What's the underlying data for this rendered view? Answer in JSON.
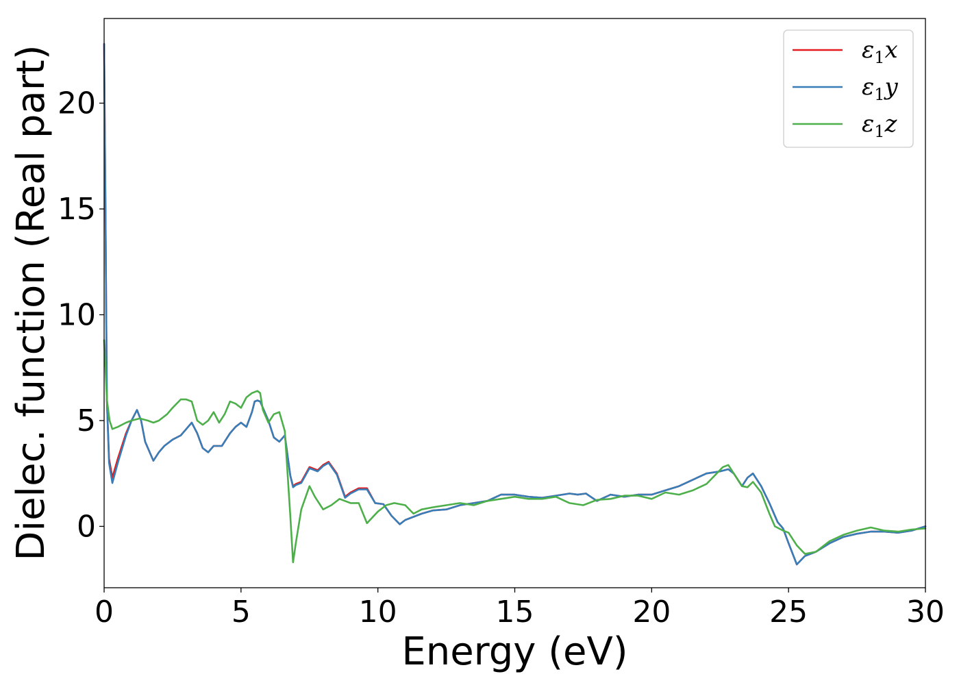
{
  "chart_data": {
    "type": "line",
    "title": "",
    "xlabel": "Energy (eV)",
    "ylabel": "Dielec. function (Real part)",
    "xlim": [
      0,
      30
    ],
    "ylim": [
      -2.9,
      24
    ],
    "xticks": [
      0,
      5,
      10,
      15,
      20,
      25,
      30
    ],
    "yticks": [
      0,
      5,
      10,
      15,
      20
    ],
    "grid": false,
    "legend_position": "top-right",
    "series": [
      {
        "name": "ε₁x",
        "legend_base": "ε",
        "legend_sub": "1",
        "legend_var": "x",
        "color": "#e41a1c",
        "x": [
          0,
          0.05,
          0.1,
          0.18,
          0.3,
          0.5,
          0.8,
          1.0,
          1.2,
          1.35,
          1.5,
          1.8,
          2.0,
          2.2,
          2.5,
          2.8,
          3.0,
          3.2,
          3.4,
          3.6,
          3.8,
          4.0,
          4.3,
          4.6,
          4.8,
          5.0,
          5.2,
          5.4,
          5.5,
          5.6,
          5.7,
          6.0,
          6.2,
          6.4,
          6.6,
          6.8,
          6.9,
          7.0,
          7.2,
          7.5,
          7.8,
          8.0,
          8.2,
          8.5,
          8.8,
          9.0,
          9.3,
          9.6,
          9.9,
          10.2,
          10.5,
          10.8,
          11.0,
          11.3,
          11.6,
          12.0,
          12.5,
          13.0,
          13.5,
          14.0,
          14.5,
          15.0,
          15.5,
          16.0,
          16.5,
          17.0,
          17.3,
          17.6,
          18.0,
          18.5,
          19.0,
          19.5,
          20.0,
          20.5,
          21.0,
          21.5,
          22.0,
          22.5,
          22.8,
          23.0,
          23.3,
          23.5,
          23.7,
          24.0,
          24.3,
          24.6,
          24.8,
          25.0,
          25.3,
          25.6,
          26.0,
          26.5,
          27.0,
          27.5,
          28.0,
          28.5,
          29.0,
          29.5,
          30.0
        ],
        "y": [
          22.8,
          15.0,
          6.0,
          3.2,
          2.3,
          3.2,
          4.4,
          5.0,
          5.5,
          5.0,
          4.0,
          3.1,
          3.5,
          3.8,
          4.1,
          4.3,
          4.6,
          4.9,
          4.4,
          3.7,
          3.5,
          3.8,
          3.8,
          4.4,
          4.7,
          4.9,
          4.7,
          5.4,
          5.9,
          5.95,
          5.9,
          5.0,
          4.2,
          4.0,
          4.3,
          2.4,
          1.9,
          2.0,
          2.1,
          2.8,
          2.65,
          2.9,
          3.05,
          2.5,
          1.4,
          1.6,
          1.8,
          1.8,
          1.1,
          1.05,
          0.5,
          0.1,
          0.3,
          0.45,
          0.6,
          0.75,
          0.8,
          1.0,
          1.1,
          1.2,
          1.5,
          1.5,
          1.4,
          1.35,
          1.45,
          1.55,
          1.5,
          1.55,
          1.2,
          1.5,
          1.4,
          1.5,
          1.5,
          1.7,
          1.9,
          2.2,
          2.5,
          2.6,
          2.7,
          2.5,
          1.9,
          2.3,
          2.5,
          1.9,
          1.1,
          0.2,
          -0.1,
          -0.8,
          -1.8,
          -1.4,
          -1.2,
          -0.8,
          -0.5,
          -0.35,
          -0.25,
          -0.25,
          -0.3,
          -0.2,
          0.0
        ]
      },
      {
        "name": "ε₁y",
        "legend_base": "ε",
        "legend_sub": "1",
        "legend_var": "y",
        "color": "#377eb8",
        "x": [
          0,
          0.05,
          0.1,
          0.18,
          0.3,
          0.5,
          0.8,
          1.0,
          1.2,
          1.35,
          1.5,
          1.8,
          2.0,
          2.2,
          2.5,
          2.8,
          3.0,
          3.2,
          3.4,
          3.6,
          3.8,
          4.0,
          4.3,
          4.6,
          4.8,
          5.0,
          5.2,
          5.4,
          5.5,
          5.6,
          5.7,
          6.0,
          6.2,
          6.4,
          6.6,
          6.8,
          6.9,
          7.0,
          7.2,
          7.5,
          7.8,
          8.0,
          8.2,
          8.5,
          8.8,
          9.0,
          9.3,
          9.6,
          9.9,
          10.2,
          10.5,
          10.8,
          11.0,
          11.3,
          11.6,
          12.0,
          12.5,
          13.0,
          13.5,
          14.0,
          14.5,
          15.0,
          15.5,
          16.0,
          16.5,
          17.0,
          17.3,
          17.6,
          18.0,
          18.5,
          19.0,
          19.5,
          20.0,
          20.5,
          21.0,
          21.5,
          22.0,
          22.5,
          22.8,
          23.0,
          23.3,
          23.5,
          23.7,
          24.0,
          24.3,
          24.6,
          24.8,
          25.0,
          25.3,
          25.6,
          26.0,
          26.5,
          27.0,
          27.5,
          28.0,
          28.5,
          29.0,
          29.5,
          30.0
        ],
        "y": [
          22.8,
          15.0,
          6.0,
          3.0,
          2.05,
          3.0,
          4.3,
          5.0,
          5.5,
          5.0,
          4.0,
          3.1,
          3.5,
          3.8,
          4.1,
          4.3,
          4.6,
          4.9,
          4.4,
          3.7,
          3.5,
          3.8,
          3.8,
          4.4,
          4.7,
          4.9,
          4.7,
          5.4,
          5.9,
          5.95,
          5.9,
          5.0,
          4.2,
          4.0,
          4.3,
          2.4,
          1.85,
          1.95,
          2.05,
          2.75,
          2.6,
          2.85,
          3.0,
          2.45,
          1.35,
          1.55,
          1.75,
          1.75,
          1.1,
          1.05,
          0.5,
          0.1,
          0.3,
          0.45,
          0.6,
          0.75,
          0.8,
          1.0,
          1.1,
          1.2,
          1.5,
          1.5,
          1.4,
          1.35,
          1.45,
          1.55,
          1.5,
          1.55,
          1.2,
          1.5,
          1.4,
          1.5,
          1.5,
          1.7,
          1.9,
          2.2,
          2.5,
          2.6,
          2.7,
          2.5,
          1.9,
          2.3,
          2.5,
          1.9,
          1.1,
          0.2,
          -0.1,
          -0.8,
          -1.8,
          -1.4,
          -1.2,
          -0.8,
          -0.5,
          -0.35,
          -0.25,
          -0.25,
          -0.3,
          -0.2,
          0.0
        ]
      },
      {
        "name": "ε₁z",
        "legend_base": "ε",
        "legend_sub": "1",
        "legend_var": "z",
        "color": "#4daf4a",
        "x": [
          0,
          0.05,
          0.1,
          0.2,
          0.3,
          0.5,
          0.8,
          1.0,
          1.3,
          1.6,
          1.8,
          2.0,
          2.3,
          2.5,
          2.8,
          3.0,
          3.2,
          3.4,
          3.6,
          3.8,
          4.0,
          4.2,
          4.4,
          4.6,
          4.8,
          5.0,
          5.2,
          5.4,
          5.6,
          5.7,
          5.8,
          6.0,
          6.2,
          6.4,
          6.6,
          6.7,
          6.8,
          6.9,
          7.0,
          7.2,
          7.5,
          7.7,
          8.0,
          8.3,
          8.6,
          9.0,
          9.3,
          9.6,
          10.0,
          10.3,
          10.6,
          11.0,
          11.3,
          11.6,
          12.0,
          12.5,
          13.0,
          13.5,
          14.0,
          14.5,
          15.0,
          15.5,
          16.0,
          16.5,
          17.0,
          17.5,
          18.0,
          18.5,
          19.0,
          19.5,
          20.0,
          20.5,
          21.0,
          21.5,
          22.0,
          22.3,
          22.6,
          22.8,
          23.0,
          23.3,
          23.5,
          23.7,
          24.0,
          24.3,
          24.5,
          24.8,
          25.0,
          25.3,
          25.6,
          26.0,
          26.5,
          27.0,
          27.5,
          28.0,
          28.5,
          29.0,
          29.5,
          30.0
        ],
        "y": [
          8.8,
          7.5,
          6.0,
          5.0,
          4.6,
          4.7,
          4.9,
          5.0,
          5.1,
          5.0,
          4.9,
          5.0,
          5.3,
          5.6,
          6.0,
          6.0,
          5.9,
          5.0,
          4.8,
          5.0,
          5.4,
          4.9,
          5.3,
          5.9,
          5.8,
          5.6,
          6.1,
          6.3,
          6.4,
          6.3,
          5.5,
          4.9,
          5.3,
          5.4,
          4.5,
          2.5,
          0.5,
          -1.7,
          -0.8,
          0.8,
          1.9,
          1.4,
          0.8,
          1.0,
          1.3,
          1.1,
          1.1,
          0.15,
          0.7,
          1.0,
          1.1,
          1.0,
          0.6,
          0.8,
          0.9,
          1.0,
          1.1,
          1.0,
          1.2,
          1.3,
          1.4,
          1.3,
          1.3,
          1.4,
          1.1,
          1.0,
          1.25,
          1.3,
          1.45,
          1.45,
          1.3,
          1.6,
          1.5,
          1.7,
          2.0,
          2.4,
          2.8,
          2.9,
          2.5,
          1.9,
          1.85,
          2.1,
          1.6,
          0.6,
          0.0,
          -0.2,
          -0.3,
          -0.9,
          -1.3,
          -1.2,
          -0.7,
          -0.4,
          -0.2,
          -0.05,
          -0.2,
          -0.25,
          -0.15,
          -0.1
        ]
      }
    ]
  }
}
